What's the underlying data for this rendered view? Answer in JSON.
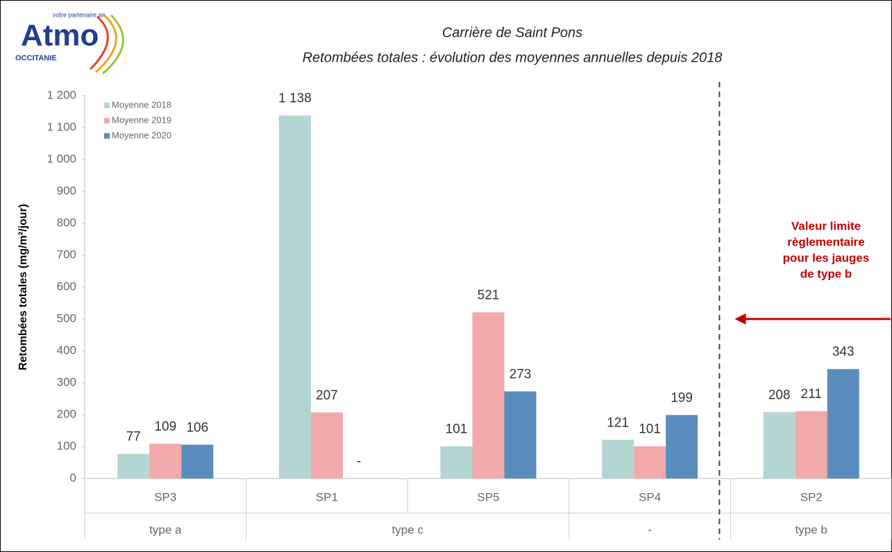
{
  "logo": {
    "name": "Atmo",
    "tagline": "votre partenaire air",
    "region": "OCCITANIE"
  },
  "chart_data": {
    "type": "bar",
    "title": "Carrière de Saint Pons",
    "subtitle": "Retombées totales : évolution des moyennes annuelles depuis 2018",
    "y_label": "Retombées totales (mg/m²/jour)",
    "categories": [
      "SP3",
      "SP1",
      "SP5",
      "SP4",
      "SP2"
    ],
    "groups": [
      "type a",
      "type c",
      "type c",
      "-",
      "type b"
    ],
    "series": [
      {
        "name": "Moyenne 2018",
        "color": "#b3d5d3",
        "values": [
          77,
          1138,
          101,
          121,
          208
        ],
        "value_labels": [
          "77",
          "1 138",
          "101",
          "121",
          "208"
        ]
      },
      {
        "name": "Moyenne 2019",
        "color": "#f2a9a9",
        "values": [
          109,
          207,
          521,
          101,
          211
        ]
      },
      {
        "name": "Moyenne 2020",
        "color": "#5a8dbd",
        "values": [
          106,
          null,
          273,
          199,
          343
        ],
        "value_labels": [
          "106",
          "-",
          "273",
          "199",
          "343"
        ]
      }
    ],
    "ylim": [
      0,
      1200
    ],
    "yticks": [
      0,
      100,
      200,
      300,
      400,
      500,
      600,
      700,
      800,
      900,
      {
        "value": 1000,
        "label": "1 000"
      },
      {
        "value": 1100,
        "label": "1 100"
      },
      {
        "value": 1200,
        "label": "1 200"
      }
    ],
    "legend": "upper left",
    "annotation": {
      "text": [
        "Valeur limite",
        "règlementaire",
        "pour les jauges",
        "de type b"
      ],
      "value": 500,
      "color": "#c00000"
    }
  }
}
